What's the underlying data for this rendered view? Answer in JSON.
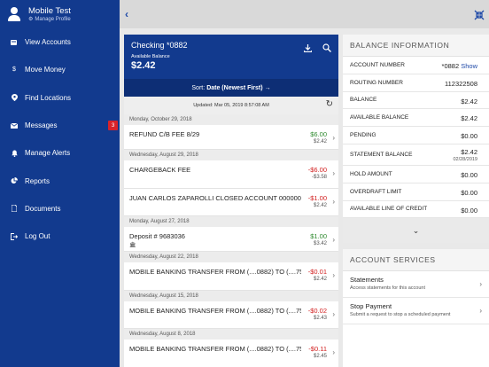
{
  "profile": {
    "name": "Mobile Test",
    "manage_label": "Manage Profile"
  },
  "nav": [
    {
      "label": "View Accounts",
      "icon": "accounts-icon"
    },
    {
      "label": "Move Money",
      "icon": "transfer-icon"
    },
    {
      "label": "Find Locations",
      "icon": "location-pin-icon"
    },
    {
      "label": "Messages",
      "icon": "envelope-icon",
      "badge": "3"
    },
    {
      "label": "Manage Alerts",
      "icon": "bell-icon"
    },
    {
      "label": "Reports",
      "icon": "pie-chart-icon"
    },
    {
      "label": "Documents",
      "icon": "document-icon"
    },
    {
      "label": "Log Out",
      "icon": "logout-icon"
    }
  ],
  "account": {
    "title": "Checking *0882",
    "available_label": "Available Balance",
    "available_balance": "$2.42"
  },
  "sort": {
    "prefix": "Sort:",
    "value": "Date (Newest First)",
    "arrow": "→"
  },
  "updated": {
    "prefix": "Updated:",
    "value": "Mar 05, 2019 8:57:08 AM"
  },
  "transactions": {
    "d1": {
      "date": "Monday, October 29, 2018"
    },
    "t1": {
      "desc": "REFUND C/B FEE 8/29",
      "amount": "$6.00",
      "balance": "$2.42"
    },
    "d2": {
      "date": "Wednesday, August 29, 2018"
    },
    "t2": {
      "desc": "CHARGEBACK FEE",
      "amount": "-$6.00",
      "balance": "-$3.58"
    },
    "t3": {
      "desc": "JUAN CARLOS ZAPAROLLI CLOSED ACCOUNT 00000000",
      "amount": "-$1.00",
      "balance": "$2.42"
    },
    "d3": {
      "date": "Monday, August 27, 2018"
    },
    "t4": {
      "desc": "Deposit # 9683036",
      "amount": "$1.00",
      "balance": "$3.42"
    },
    "d4": {
      "date": "Wednesday, August 22, 2018"
    },
    "t5": {
      "desc": "MOBILE BANKING TRANSFER FROM (....0882) TO (....756",
      "amount": "-$0.01",
      "balance": "$2.42"
    },
    "d5": {
      "date": "Wednesday, August 15, 2018"
    },
    "t6": {
      "desc": "MOBILE BANKING TRANSFER FROM (....0882) TO (....756",
      "amount": "-$0.02",
      "balance": "$2.43"
    },
    "d6": {
      "date": "Wednesday, August 8, 2018"
    },
    "t7": {
      "desc": "MOBILE BANKING TRANSFER FROM (....0882) TO (....756",
      "amount": "-$0.11",
      "balance": "$2.45"
    }
  },
  "balance_info": {
    "title": "BALANCE INFORMATION",
    "account_number": {
      "label": "ACCOUNT NUMBER",
      "value": "*0882",
      "link": "Show"
    },
    "routing_number": {
      "label": "ROUTING NUMBER",
      "value": "112322508"
    },
    "balance": {
      "label": "BALANCE",
      "value": "$2.42"
    },
    "available_balance": {
      "label": "AVAILABLE BALANCE",
      "value": "$2.42"
    },
    "pending": {
      "label": "PENDING",
      "value": "$0.00"
    },
    "statement_balance": {
      "label": "STATEMENT BALANCE",
      "value": "$2.42",
      "date": "02/28/2019"
    },
    "hold_amount": {
      "label": "HOLD AMOUNT",
      "value": "$0.00"
    },
    "overdraft_limit": {
      "label": "OVERDRAFT LIMIT",
      "value": "$0.00"
    },
    "available_line_of_credit": {
      "label": "AVAILABLE LINE OF CREDIT",
      "value": "$0.00"
    }
  },
  "account_services": {
    "title": "ACCOUNT SERVICES",
    "statements": {
      "title": "Statements",
      "desc": "Access statements for this account"
    },
    "stop_payment": {
      "title": "Stop Payment",
      "desc": "Submit a request to stop a scheduled payment"
    }
  },
  "colors": {
    "sidebar": "#123a8e",
    "positive": "#2f8a2f",
    "negative": "#d22020",
    "link": "#1f4aa8"
  }
}
